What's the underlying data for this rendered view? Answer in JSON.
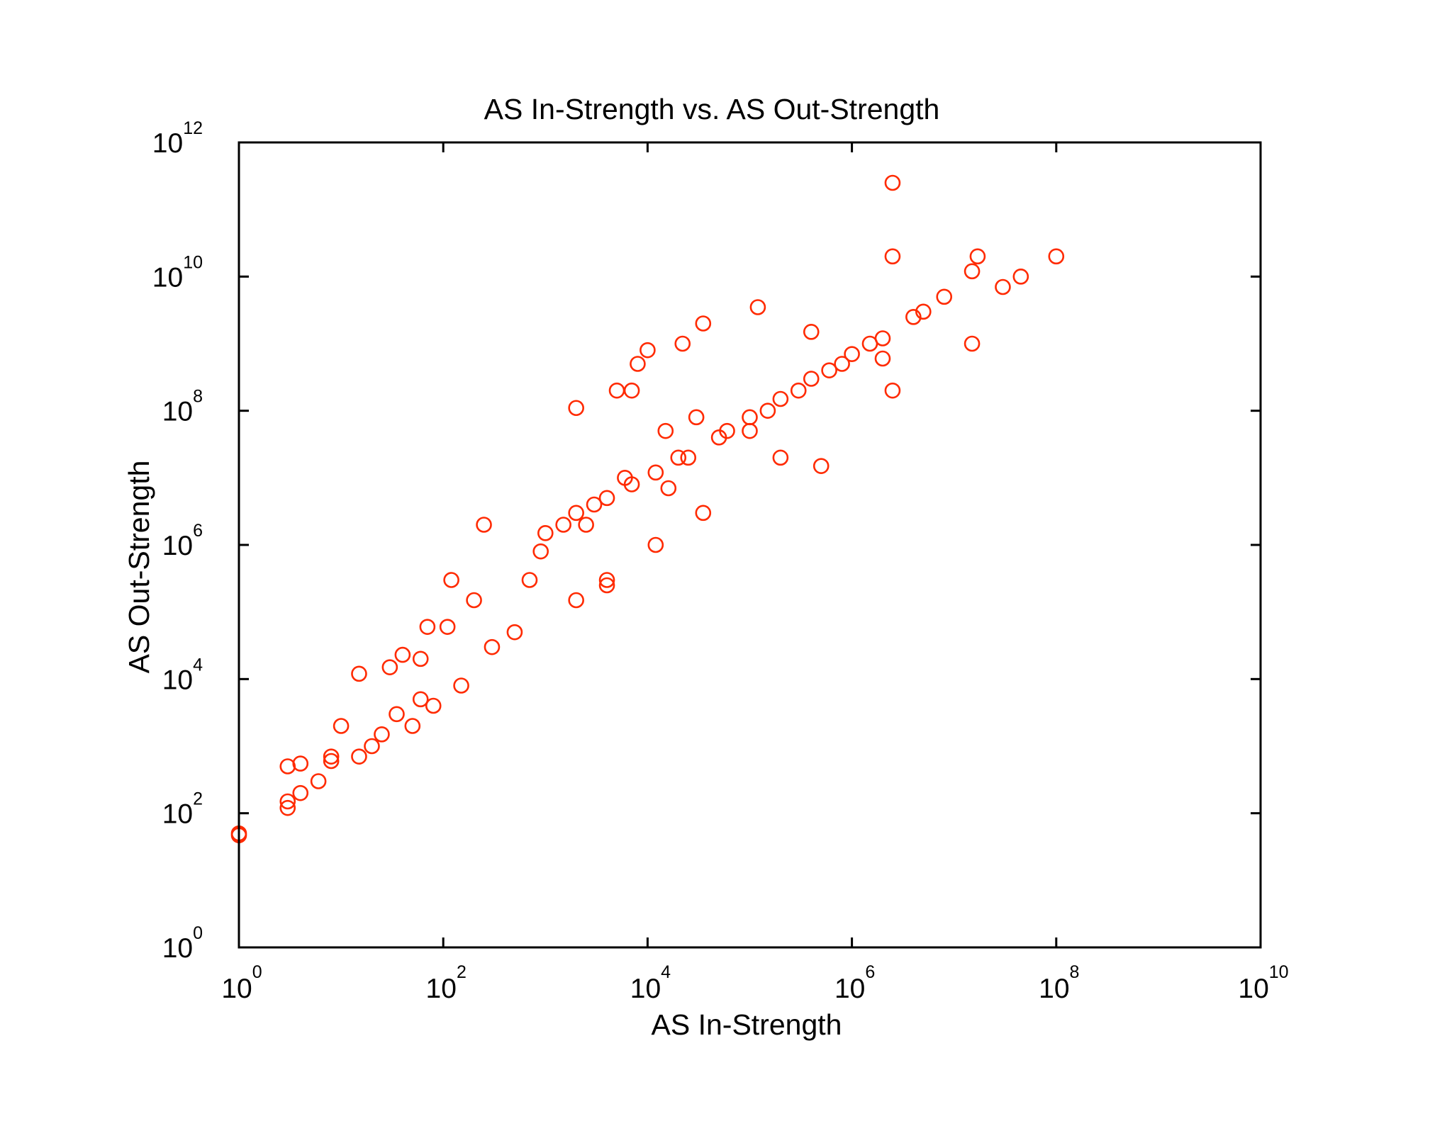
{
  "chart_data": {
    "type": "scatter",
    "title": "AS In-Strength vs. AS Out-Strength",
    "xlabel": "AS In-Strength",
    "ylabel": "AS Out-Strength",
    "x_scale": "log",
    "y_scale": "log",
    "xlim": [
      1,
      10000000000
    ],
    "ylim": [
      1,
      1000000000000
    ],
    "grid": false,
    "legend": "none",
    "marker": "circle",
    "marker_color": "#ff2a00",
    "x_ticks": [
      {
        "base": "10",
        "exp": "0",
        "value": 1
      },
      {
        "base": "10",
        "exp": "2",
        "value": 100
      },
      {
        "base": "10",
        "exp": "4",
        "value": 10000
      },
      {
        "base": "10",
        "exp": "6",
        "value": 1000000
      },
      {
        "base": "10",
        "exp": "8",
        "value": 100000000
      },
      {
        "base": "10",
        "exp": "10",
        "value": 10000000000
      }
    ],
    "y_ticks": [
      {
        "base": "10",
        "exp": "0",
        "value": 1
      },
      {
        "base": "10",
        "exp": "2",
        "value": 100
      },
      {
        "base": "10",
        "exp": "4",
        "value": 10000
      },
      {
        "base": "10",
        "exp": "6",
        "value": 1000000
      },
      {
        "base": "10",
        "exp": "8",
        "value": 100000000
      },
      {
        "base": "10",
        "exp": "10",
        "value": 10000000000
      },
      {
        "base": "10",
        "exp": "12",
        "value": 1000000000000
      }
    ],
    "points": [
      {
        "x": 1,
        "y": 50
      },
      {
        "x": 1,
        "y": 47
      },
      {
        "x": 100000000.0,
        "y": 20000000000.0
      },
      {
        "x": 2500000.0,
        "y": 250000000000.0
      },
      {
        "x": 2500000.0,
        "y": 20000000000.0
      },
      {
        "x": 30000000.0,
        "y": 7000000000.0
      },
      {
        "x": 45000000.0,
        "y": 10000000000.0
      },
      {
        "x": 15000000.0,
        "y": 12000000000.0
      },
      {
        "x": 17000000.0,
        "y": 20000000000.0
      },
      {
        "x": 15000000.0,
        "y": 1000000000.0
      },
      {
        "x": 2500000.0,
        "y": 200000000.0
      },
      {
        "x": 5000.0,
        "y": 200000000.0
      },
      {
        "x": 2000.0,
        "y": 110000000.0
      },
      {
        "x": 120000.0,
        "y": 3500000000.0
      },
      {
        "x": 35000.0,
        "y": 2000000000.0
      },
      {
        "x": 22000.0,
        "y": 1000000000.0
      },
      {
        "x": 10000.0,
        "y": 800000000.0
      },
      {
        "x": 8000.0,
        "y": 500000000.0
      },
      {
        "x": 7000.0,
        "y": 200000000.0
      },
      {
        "x": 16000.0,
        "y": 7000000.0
      },
      {
        "x": 35000.0,
        "y": 3000000.0
      },
      {
        "x": 12000.0,
        "y": 1000000.0
      },
      {
        "x": 2500.0,
        "y": 2000000.0
      },
      {
        "x": 4000.0,
        "y": 300000.0
      },
      {
        "x": 4000.0,
        "y": 250000.0
      },
      {
        "x": 2000.0,
        "y": 150000.0
      },
      {
        "x": 250,
        "y": 2000000.0
      },
      {
        "x": 200,
        "y": 150000.0
      },
      {
        "x": 120,
        "y": 300000.0
      },
      {
        "x": 110,
        "y": 60000.0
      },
      {
        "x": 70,
        "y": 60000.0
      },
      {
        "x": 60,
        "y": 20000.0
      },
      {
        "x": 40,
        "y": 23000.0
      },
      {
        "x": 15,
        "y": 12000.0
      },
      {
        "x": 30,
        "y": 15000.0
      },
      {
        "x": 80,
        "y": 4000.0
      },
      {
        "x": 50,
        "y": 2000.0
      },
      {
        "x": 35,
        "y": 3000.0
      },
      {
        "x": 20,
        "y": 1000.0
      },
      {
        "x": 10,
        "y": 2000.0
      },
      {
        "x": 8,
        "y": 700
      },
      {
        "x": 8,
        "y": 600
      },
      {
        "x": 6,
        "y": 300
      },
      {
        "x": 4,
        "y": 200
      },
      {
        "x": 3,
        "y": 150
      },
      {
        "x": 3,
        "y": 120
      },
      {
        "x": 3,
        "y": 500
      },
      {
        "x": 4,
        "y": 550
      },
      {
        "x": 15,
        "y": 700
      },
      {
        "x": 25,
        "y": 1500
      },
      {
        "x": 60,
        "y": 5000
      },
      {
        "x": 150,
        "y": 8000.0
      },
      {
        "x": 300,
        "y": 30000.0
      },
      {
        "x": 500,
        "y": 50000.0
      },
      {
        "x": 700,
        "y": 300000.0
      },
      {
        "x": 900,
        "y": 800000.0
      },
      {
        "x": 1500,
        "y": 2000000.0
      },
      {
        "x": 3000,
        "y": 4000000.0
      },
      {
        "x": 6000,
        "y": 10000000.0
      },
      {
        "x": 20000.0,
        "y": 20000000.0
      },
      {
        "x": 60000.0,
        "y": 50000000.0
      },
      {
        "x": 150000.0,
        "y": 100000000.0
      },
      {
        "x": 300000.0,
        "y": 200000000.0
      },
      {
        "x": 600000.0,
        "y": 400000000.0
      },
      {
        "x": 1000000.0,
        "y": 700000000.0
      },
      {
        "x": 2000000.0,
        "y": 1200000000.0
      },
      {
        "x": 4000000.0,
        "y": 2500000000.0
      },
      {
        "x": 8000000.0,
        "y": 5000000000.0
      },
      {
        "x": 5000000.0,
        "y": 3000000000.0
      },
      {
        "x": 1500000.0,
        "y": 1000000000.0
      },
      {
        "x": 800000.0,
        "y": 500000000.0
      },
      {
        "x": 400000.0,
        "y": 300000000.0
      },
      {
        "x": 200000.0,
        "y": 150000000.0
      },
      {
        "x": 100000.0,
        "y": 80000000.0
      },
      {
        "x": 50000.0,
        "y": 40000000.0
      },
      {
        "x": 25000.0,
        "y": 20000000.0
      },
      {
        "x": 12000.0,
        "y": 12000000.0
      },
      {
        "x": 7000.0,
        "y": 8000000.0
      },
      {
        "x": 4000.0,
        "y": 5000000.0
      },
      {
        "x": 2000.0,
        "y": 3000000.0
      },
      {
        "x": 1000.0,
        "y": 1500000.0
      },
      {
        "x": 500000.0,
        "y": 15000000.0
      },
      {
        "x": 200000.0,
        "y": 20000000.0
      },
      {
        "x": 100000.0,
        "y": 50000000.0
      },
      {
        "x": 400000.0,
        "y": 1500000000.0
      },
      {
        "x": 2000000.0,
        "y": 600000000.0
      },
      {
        "x": 15000.0,
        "y": 50000000.0
      },
      {
        "x": 30000.0,
        "y": 80000000.0
      }
    ]
  }
}
